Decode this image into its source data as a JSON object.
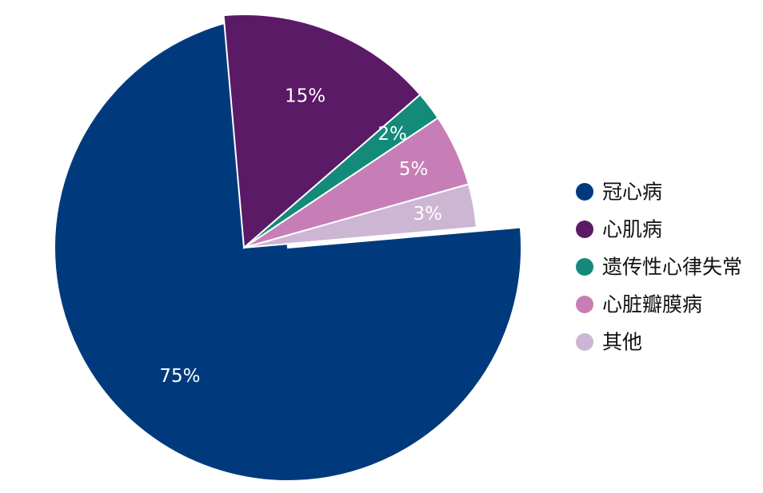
{
  "chart_data": {
    "type": "pie",
    "categories": [
      "冠心病",
      "心肌病",
      "遗传性心律失常",
      "心脏瓣膜病",
      "其他"
    ],
    "values": [
      75,
      15,
      2,
      5,
      3
    ],
    "labels": [
      "75%",
      "15%",
      "2%",
      "5%",
      "3%"
    ],
    "colors": [
      "#003a7d",
      "#5a1a66",
      "#138a7a",
      "#c77eb6",
      "#cdb6d3"
    ],
    "legend": {
      "position": "right",
      "items": [
        "冠心病",
        "心肌病",
        "遗传性心律失常",
        "心脏瓣膜病",
        "其他"
      ]
    },
    "exploded": [
      false,
      true,
      true,
      true,
      true
    ]
  }
}
